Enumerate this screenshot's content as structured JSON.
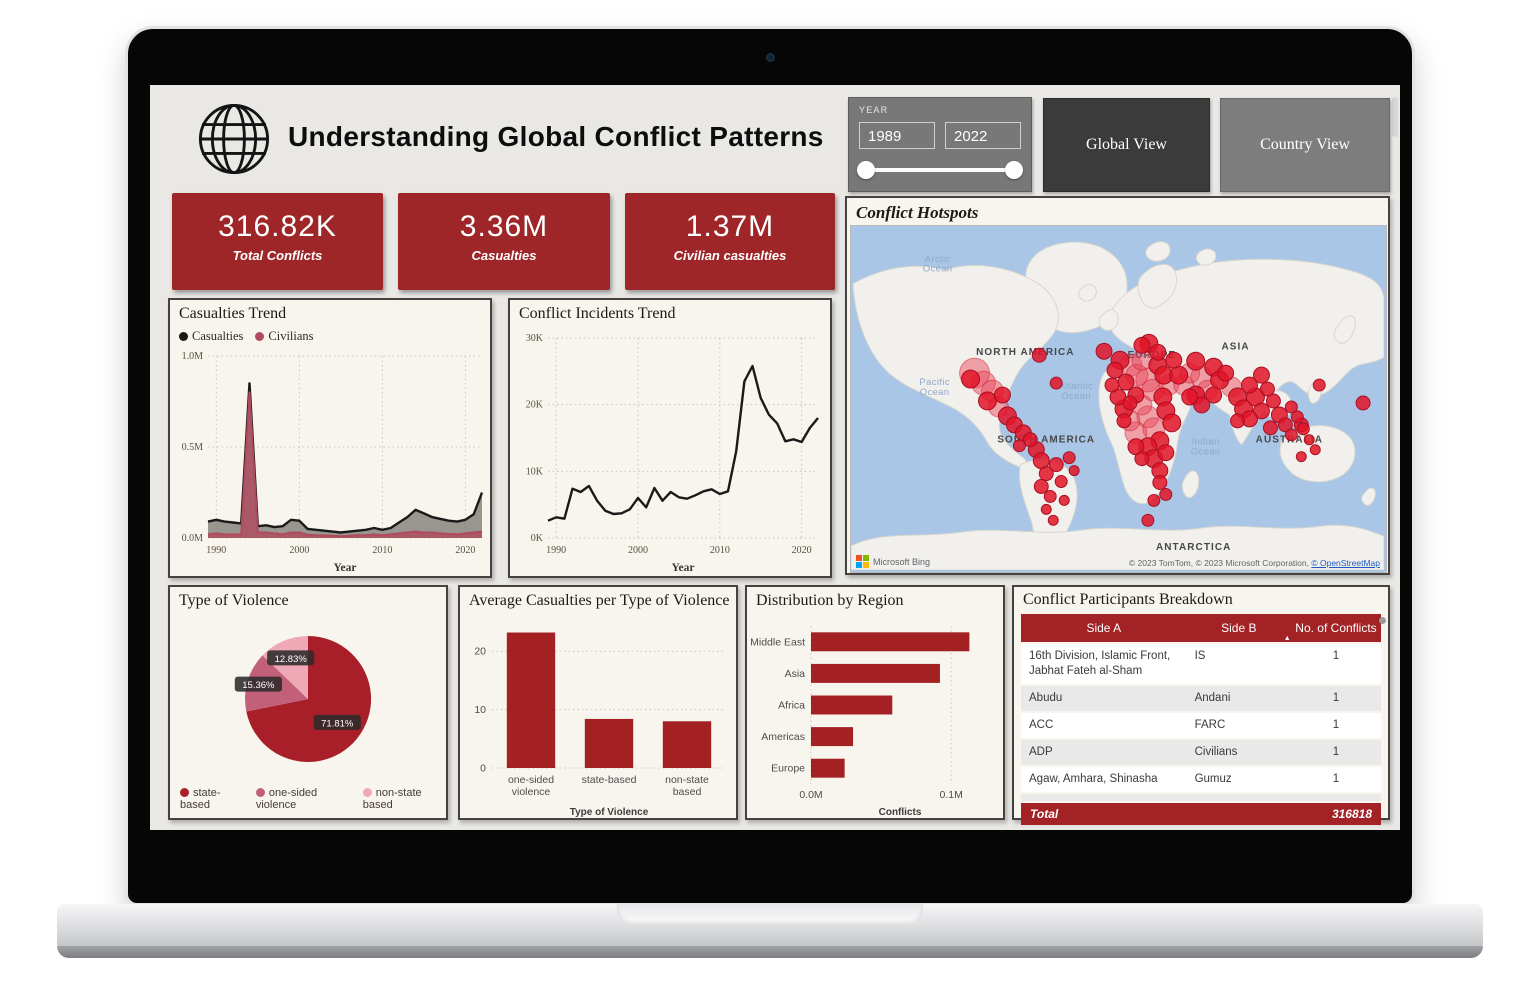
{
  "header": {
    "title": "Understanding Global Conflict Patterns",
    "logo": "globe-icon",
    "year_filter": {
      "label": "YEAR",
      "start": "1989",
      "end": "2022"
    },
    "view_buttons": [
      {
        "label": "Global View"
      },
      {
        "label": "Country View"
      }
    ]
  },
  "kpis": [
    {
      "value": "316.82K",
      "label": "Total Conflicts"
    },
    {
      "value": "3.36M",
      "label": "Casualties"
    },
    {
      "value": "1.37M",
      "label": "Civilian casualties"
    }
  ],
  "colors": {
    "kpi_red": "#9f2628",
    "bar_red": "#a32023",
    "table_header_red": "#a32225",
    "panel_bg": "#f8f5ee",
    "dashboard_bg": "#e9e8e5",
    "ocean": "#a9c6e6",
    "land": "#f2f0ec",
    "bubble_red": "#e21428"
  },
  "chart_data": [
    {
      "id": "casualties_trend",
      "type": "area",
      "title": "Casualties Trend",
      "x": [
        1989,
        1990,
        1991,
        1992,
        1993,
        1994,
        1995,
        1996,
        1997,
        1998,
        1999,
        2000,
        2001,
        2002,
        2003,
        2004,
        2005,
        2006,
        2007,
        2008,
        2009,
        2010,
        2011,
        2012,
        2013,
        2014,
        2015,
        2016,
        2017,
        2018,
        2019,
        2020,
        2021,
        2022
      ],
      "series": [
        {
          "name": "Casualties",
          "color": "#1a1a1a",
          "fill": "rgba(120,118,110,0.75)",
          "width": 2.4,
          "values": [
            0.09,
            0.1,
            0.09,
            0.085,
            0.08,
            0.85,
            0.065,
            0.07,
            0.06,
            0.065,
            0.1,
            0.095,
            0.05,
            0.045,
            0.04,
            0.035,
            0.03,
            0.035,
            0.04,
            0.045,
            0.055,
            0.045,
            0.055,
            0.085,
            0.115,
            0.155,
            0.135,
            0.115,
            0.105,
            0.095,
            0.09,
            0.1,
            0.13,
            0.25
          ]
        },
        {
          "name": "Civilians",
          "color": "#b04a5e",
          "fill": "rgba(176,74,94,0.8)",
          "width": 2,
          "values": [
            0.02,
            0.025,
            0.02,
            0.02,
            0.02,
            0.8,
            0.03,
            0.03,
            0.025,
            0.02,
            0.03,
            0.03,
            0.018,
            0.015,
            0.014,
            0.012,
            0.01,
            0.012,
            0.015,
            0.015,
            0.02,
            0.015,
            0.02,
            0.025,
            0.03,
            0.035,
            0.03,
            0.03,
            0.025,
            0.022,
            0.02,
            0.025,
            0.03,
            0.035
          ]
        }
      ],
      "ylim": [
        0,
        1.0
      ],
      "ytick_values": [
        0,
        0.5,
        1.0
      ],
      "ytick_labels": [
        "0.0M",
        "0.5M",
        "1.0M"
      ],
      "xticks": [
        1990,
        2000,
        2010,
        2020
      ],
      "xlabel": "Year"
    },
    {
      "id": "incidents_trend",
      "type": "line",
      "title": "Conflict Incidents Trend",
      "x": [
        1989,
        1990,
        1991,
        1992,
        1993,
        1994,
        1995,
        1996,
        1997,
        1998,
        1999,
        2000,
        2001,
        2002,
        2003,
        2004,
        2005,
        2006,
        2007,
        2008,
        2009,
        2010,
        2011,
        2012,
        2013,
        2014,
        2015,
        2016,
        2017,
        2018,
        2019,
        2020,
        2021,
        2022
      ],
      "values": [
        2.6,
        3.1,
        2.9,
        7.4,
        6.9,
        7.8,
        5.6,
        4.1,
        3.6,
        3.7,
        4.3,
        6.0,
        4.6,
        7.5,
        5.6,
        6.9,
        6.1,
        5.9,
        6.4,
        7.0,
        7.3,
        6.6,
        7.0,
        13.0,
        23.5,
        25.8,
        21.0,
        18.5,
        17.2,
        14.5,
        14.8,
        14.4,
        16.5,
        18.0
      ],
      "color": "#1a1a1a",
      "ylim": [
        0,
        30
      ],
      "ytick_values": [
        0,
        10,
        20,
        30
      ],
      "ytick_labels": [
        "0K",
        "10K",
        "20K",
        "30K"
      ],
      "xticks": [
        1990,
        2000,
        2010,
        2020
      ],
      "xlabel": "Year"
    },
    {
      "id": "violence_pie",
      "type": "pie",
      "title": "Type of Violence",
      "values": [
        71.81,
        15.36,
        12.83
      ],
      "display": [
        "71.81%",
        "15.36%",
        "12.83%"
      ],
      "legend": [
        {
          "label": "state-based",
          "color": "#a81f2a"
        },
        {
          "label": "one-sided violence",
          "color": "#c2607a"
        },
        {
          "label": "non-state based",
          "color": "#efa9b6"
        }
      ]
    },
    {
      "id": "avg_casualties",
      "type": "bar",
      "title": "Average Casualties per Type of Violence",
      "categories": [
        "one-sided violence",
        "state-based",
        "non-state based"
      ],
      "values": [
        23.2,
        8.4,
        8.0
      ],
      "color": "#a32023",
      "ylim": [
        0,
        25
      ],
      "ytick_values": [
        0,
        10,
        20
      ],
      "xlabel": "Type of Violence"
    },
    {
      "id": "region_distribution",
      "type": "hbar",
      "title": "Distribution by Region",
      "categories": [
        "Middle East",
        "Asia",
        "Africa",
        "Americas",
        "Europe"
      ],
      "values": [
        0.113,
        0.092,
        0.058,
        0.03,
        0.024
      ],
      "color": "#a32023",
      "xlim": [
        0,
        0.127
      ],
      "xtick_values": [
        0,
        0.1
      ],
      "xtick_labels": [
        "0.0M",
        "0.1M"
      ],
      "xlabel": "Conflicts"
    },
    {
      "id": "hotspots_map",
      "type": "bubble-map",
      "title": "Conflict Hotspots",
      "logo_text": "Microsoft Bing",
      "attribution": "© 2023 TomTom, © 2023 Microsoft Corporation, ",
      "attribution_link": "© OpenStreetMap",
      "labels": [
        {
          "text": "Arctic Ocean",
          "x": 87,
          "y": 36,
          "cls": "ocean"
        },
        {
          "text": "NORTH AMERICA",
          "x": 175,
          "y": 130,
          "cls": "continent"
        },
        {
          "text": "EUROPE",
          "x": 302,
          "y": 133,
          "cls": "continent"
        },
        {
          "text": "ASIA",
          "x": 386,
          "y": 124,
          "cls": "continent"
        },
        {
          "text": "Pacific Ocean",
          "x": 84,
          "y": 160,
          "cls": "ocean"
        },
        {
          "text": "Atlantic Ocean",
          "x": 226,
          "y": 164,
          "cls": "ocean"
        },
        {
          "text": "SOUTH AMERICA",
          "x": 196,
          "y": 218,
          "cls": "continent"
        },
        {
          "text": "Indian Ocean",
          "x": 356,
          "y": 220,
          "cls": "ocean"
        },
        {
          "text": "AUSTRALIA",
          "x": 440,
          "y": 218,
          "cls": "continent"
        },
        {
          "text": "ANTARCTICA",
          "x": 344,
          "y": 326,
          "cls": "continent"
        }
      ],
      "bubbles": [
        [
          189,
          130,
          7
        ],
        [
          206,
          158,
          6
        ],
        [
          124,
          148,
          15
        ],
        [
          133,
          158,
          12
        ],
        [
          142,
          166,
          11
        ],
        [
          137,
          176,
          9
        ],
        [
          148,
          182,
          10
        ],
        [
          157,
          191,
          9
        ],
        [
          164,
          200,
          8
        ],
        [
          173,
          208,
          8
        ],
        [
          152,
          170,
          8
        ],
        [
          120,
          154,
          9
        ],
        [
          180,
          215,
          7
        ],
        [
          169,
          221,
          6
        ],
        [
          186,
          225,
          8
        ],
        [
          191,
          236,
          8
        ],
        [
          196,
          249,
          7
        ],
        [
          191,
          262,
          7
        ],
        [
          200,
          272,
          6
        ],
        [
          196,
          285,
          5
        ],
        [
          206,
          240,
          7
        ],
        [
          211,
          257,
          6
        ],
        [
          214,
          276,
          5
        ],
        [
          203,
          296,
          5
        ],
        [
          219,
          233,
          6
        ],
        [
          224,
          246,
          5
        ],
        [
          254,
          126,
          8
        ],
        [
          299,
          118,
          9
        ],
        [
          270,
          135,
          9
        ],
        [
          281,
          140,
          11
        ],
        [
          292,
          135,
          10
        ],
        [
          287,
          150,
          11
        ],
        [
          298,
          155,
          12
        ],
        [
          276,
          157,
          8
        ],
        [
          308,
          140,
          9
        ],
        [
          303,
          165,
          11
        ],
        [
          314,
          150,
          9
        ],
        [
          265,
          145,
          8
        ],
        [
          292,
          120,
          8
        ],
        [
          319,
          160,
          10
        ],
        [
          308,
          127,
          8
        ],
        [
          324,
          135,
          8
        ],
        [
          329,
          150,
          9
        ],
        [
          313,
          172,
          9
        ],
        [
          268,
          172,
          8
        ],
        [
          274,
          184,
          9
        ],
        [
          280,
          196,
          10
        ],
        [
          286,
          208,
          11
        ],
        [
          292,
          180,
          10
        ],
        [
          298,
          192,
          11
        ],
        [
          304,
          204,
          11
        ],
        [
          310,
          216,
          9
        ],
        [
          298,
          222,
          9
        ],
        [
          304,
          234,
          9
        ],
        [
          310,
          246,
          8
        ],
        [
          292,
          234,
          7
        ],
        [
          286,
          222,
          8
        ],
        [
          316,
          186,
          9
        ],
        [
          322,
          198,
          9
        ],
        [
          316,
          228,
          8
        ],
        [
          280,
          178,
          7
        ],
        [
          274,
          196,
          7
        ],
        [
          310,
          258,
          7
        ],
        [
          316,
          270,
          6
        ],
        [
          304,
          276,
          6
        ],
        [
          298,
          296,
          6
        ],
        [
          286,
          170,
          8
        ],
        [
          262,
          160,
          7
        ],
        [
          334,
          160,
          10
        ],
        [
          340,
          148,
          10
        ],
        [
          346,
          136,
          9
        ],
        [
          352,
          152,
          11
        ],
        [
          358,
          165,
          10
        ],
        [
          364,
          142,
          9
        ],
        [
          346,
          170,
          9
        ],
        [
          352,
          180,
          8
        ],
        [
          364,
          170,
          8
        ],
        [
          340,
          172,
          8
        ],
        [
          370,
          155,
          9
        ],
        [
          376,
          148,
          8
        ],
        [
          382,
          162,
          10
        ],
        [
          388,
          172,
          9
        ],
        [
          394,
          184,
          9
        ],
        [
          400,
          160,
          8
        ],
        [
          406,
          172,
          9
        ],
        [
          412,
          186,
          8
        ],
        [
          400,
          194,
          8
        ],
        [
          388,
          196,
          7
        ],
        [
          418,
          164,
          7
        ],
        [
          412,
          150,
          8
        ],
        [
          424,
          176,
          7
        ],
        [
          430,
          190,
          8
        ],
        [
          436,
          200,
          7
        ],
        [
          442,
          210,
          6
        ],
        [
          448,
          192,
          6
        ],
        [
          454,
          204,
          6
        ],
        [
          442,
          182,
          6
        ],
        [
          460,
          215,
          5
        ],
        [
          466,
          225,
          5
        ],
        [
          470,
          160,
          6
        ],
        [
          452,
          232,
          5
        ],
        [
          421,
          203,
          7
        ],
        [
          452,
          200,
          7
        ],
        [
          514,
          178,
          7
        ]
      ]
    }
  ],
  "table": {
    "title": "Conflict Participants Breakdown",
    "columns": [
      "Side A",
      "Side B",
      "No. of Conflicts"
    ],
    "sort_icon": "▲",
    "rows": [
      {
        "side_a": "16th Division, Islamic Front, Jabhat Fateh al-Sham",
        "side_b": "IS",
        "count": "1"
      },
      {
        "side_a": "Abudu",
        "side_b": "Andani",
        "count": "1"
      },
      {
        "side_a": "ACC",
        "side_b": "FARC",
        "count": "1"
      },
      {
        "side_a": "ADP",
        "side_b": "Civilians",
        "count": "1"
      },
      {
        "side_a": "Agaw, Amhara, Shinasha",
        "side_b": "Gumuz",
        "count": "1"
      }
    ],
    "total_label": "Total",
    "total_value": "316818"
  }
}
